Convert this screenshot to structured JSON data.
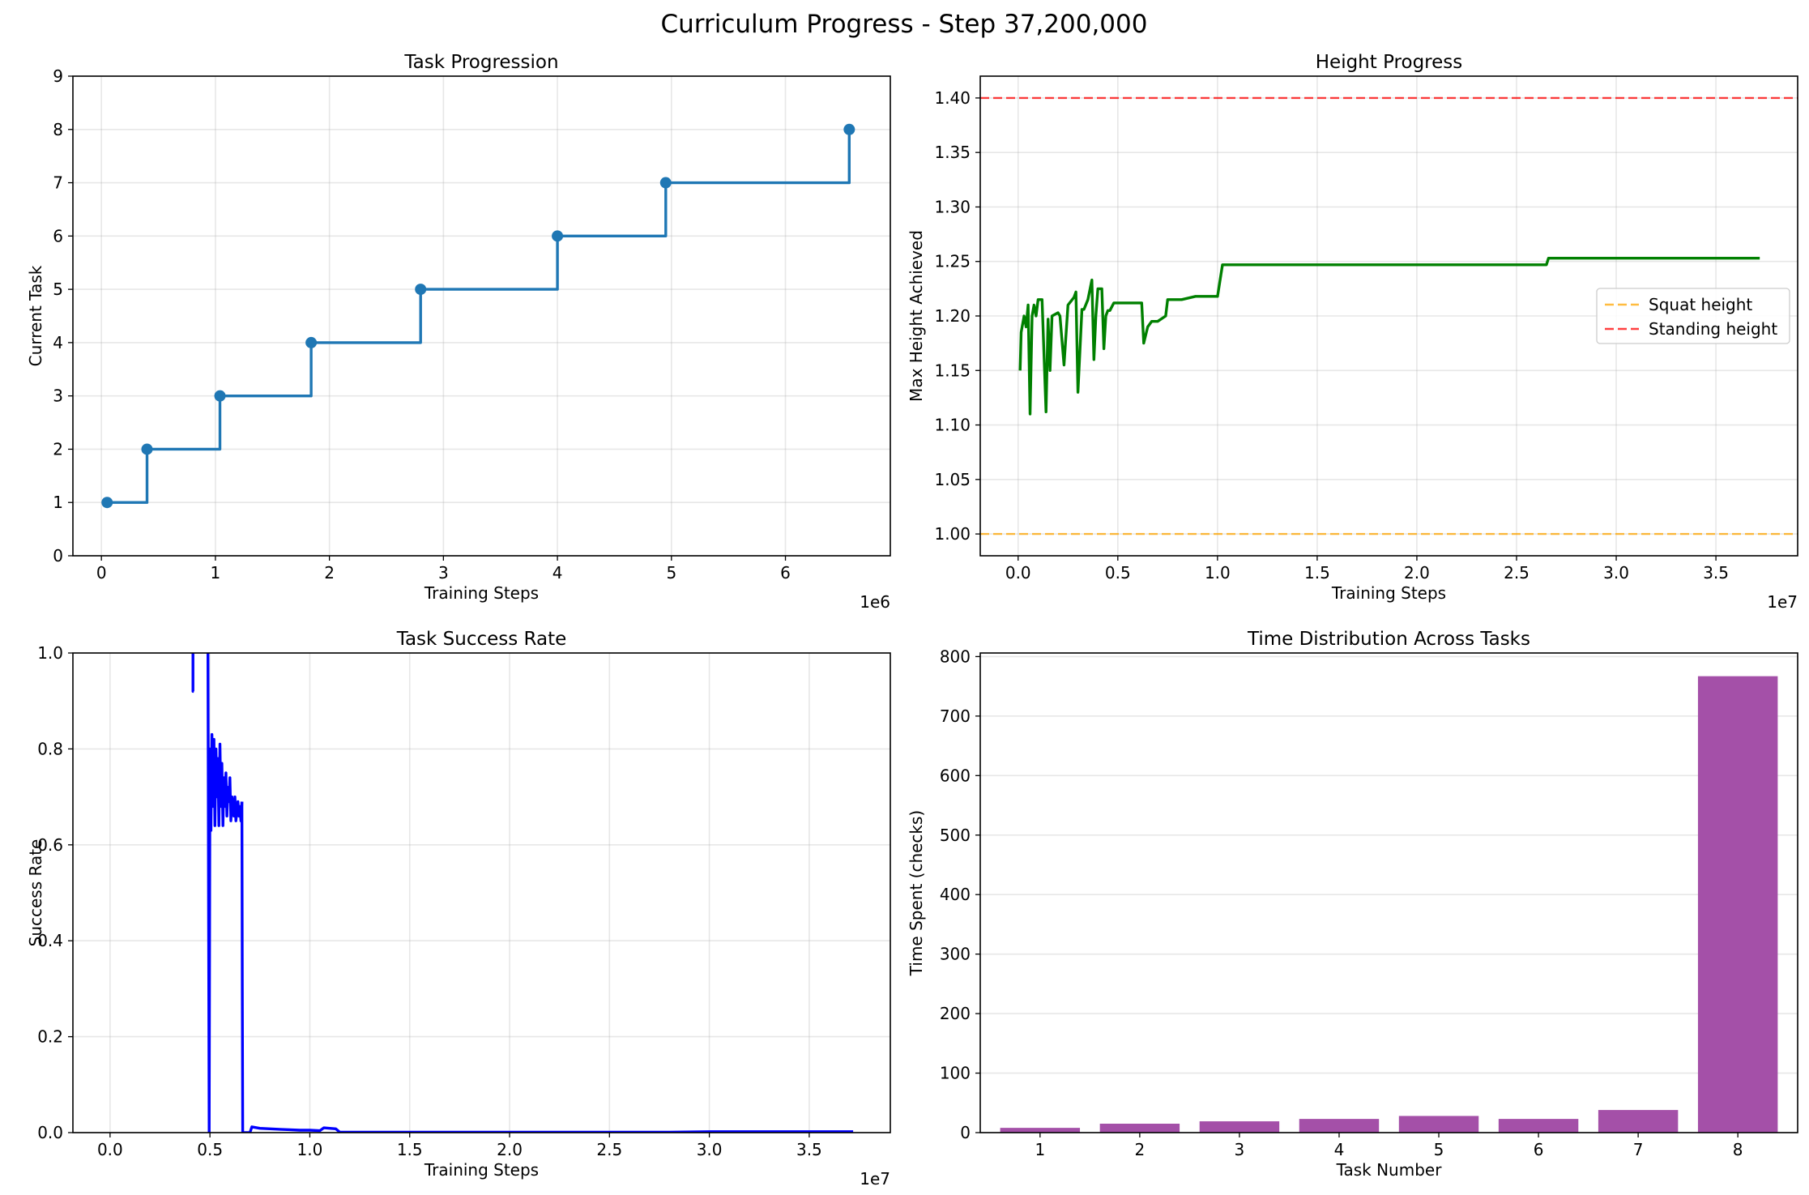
{
  "figure": {
    "suptitle": "Curriculum Progress - Step 37,200,000"
  },
  "chart_data": [
    {
      "type": "line",
      "title": "Task Progression",
      "xlabel": "Training Steps",
      "ylabel": "Current Task",
      "x_offset_label": "1e6",
      "xlim": [
        -250000,
        6920000
      ],
      "ylim": [
        0,
        9
      ],
      "x_ticks": [
        0,
        1000000,
        2000000,
        3000000,
        4000000,
        5000000,
        6000000
      ],
      "x_tick_labels": [
        "0",
        "1",
        "2",
        "3",
        "4",
        "5",
        "6"
      ],
      "y_ticks": [
        0,
        1,
        2,
        3,
        4,
        5,
        6,
        7,
        8,
        9
      ],
      "y_tick_labels": [
        "0",
        "1",
        "2",
        "3",
        "4",
        "5",
        "6",
        "7",
        "8",
        "9"
      ],
      "grid": true,
      "step": "post",
      "markers": true,
      "color": "#1f77b4",
      "series": [
        {
          "x": [
            50000,
            400000,
            1040000,
            1840000,
            2800000,
            4000000,
            4950000,
            6560000
          ],
          "y": [
            1,
            2,
            3,
            4,
            5,
            6,
            7,
            8
          ]
        }
      ]
    },
    {
      "type": "line",
      "title": "Height Progress",
      "xlabel": "Training Steps",
      "ylabel": "Max Height Achieved",
      "x_offset_label": "1e7",
      "xlim": [
        -1900000,
        39100000
      ],
      "ylim": [
        0.98,
        1.42
      ],
      "x_ticks": [
        0,
        5000000,
        10000000,
        15000000,
        20000000,
        25000000,
        30000000,
        35000000
      ],
      "x_tick_labels": [
        "0.0",
        "0.5",
        "1.0",
        "1.5",
        "2.0",
        "2.5",
        "3.0",
        "3.5"
      ],
      "y_ticks": [
        1.0,
        1.05,
        1.1,
        1.15,
        1.2,
        1.25,
        1.3,
        1.35,
        1.4
      ],
      "y_tick_labels": [
        "1.00",
        "1.05",
        "1.10",
        "1.15",
        "1.20",
        "1.25",
        "1.30",
        "1.35",
        "1.40"
      ],
      "grid": true,
      "legend_position": "center-right",
      "series": [
        {
          "color": "#008000",
          "x": [
            100000,
            150000,
            300000,
            400000,
            500000,
            600000,
            700000,
            800000,
            900000,
            1000000,
            1200000,
            1400000,
            1500000,
            1600000,
            1700000,
            2000000,
            2100000,
            2300000,
            2500000,
            2800000,
            2900000,
            3000000,
            3200000,
            3300000,
            3500000,
            3700000,
            3800000,
            3900000,
            4000000,
            4200000,
            4300000,
            4400000,
            4500000,
            4600000,
            4800000,
            5000000,
            5100000,
            5300000,
            5400000,
            5600000,
            5800000,
            6200000,
            6300000,
            6500000,
            6700000,
            6800000,
            7000000,
            7400000,
            7500000,
            7700000,
            8000000,
            8200000,
            8900000,
            9000000,
            10000000,
            10250000,
            14000000,
            20000000,
            26500000,
            26600000,
            30000000,
            37200000
          ],
          "y": [
            1.15,
            1.185,
            1.2,
            1.19,
            1.21,
            1.11,
            1.2,
            1.21,
            1.2,
            1.215,
            1.215,
            1.112,
            1.197,
            1.15,
            1.2,
            1.203,
            1.2,
            1.155,
            1.21,
            1.217,
            1.222,
            1.13,
            1.206,
            1.206,
            1.215,
            1.233,
            1.16,
            1.2,
            1.225,
            1.225,
            1.17,
            1.2,
            1.205,
            1.205,
            1.212,
            1.212,
            1.212,
            1.212,
            1.212,
            1.212,
            1.212,
            1.212,
            1.175,
            1.19,
            1.195,
            1.195,
            1.195,
            1.2,
            1.215,
            1.215,
            1.215,
            1.215,
            1.218,
            1.218,
            1.218,
            1.247,
            1.247,
            1.247,
            1.247,
            1.253,
            1.253,
            1.253
          ]
        },
        {
          "name": "Squat height",
          "color": "#ffa500",
          "dashed": true,
          "hline": 1.0
        },
        {
          "name": "Standing height",
          "color": "#ff0000",
          "dashed": true,
          "hline": 1.4
        }
      ]
    },
    {
      "type": "line",
      "title": "Task Success Rate",
      "xlabel": "Training Steps",
      "ylabel": "Success Rate",
      "x_offset_label": "1e7",
      "xlim": [
        -1860000,
        39060000
      ],
      "ylim": [
        0,
        1
      ],
      "x_ticks": [
        0,
        5000000,
        10000000,
        15000000,
        20000000,
        25000000,
        30000000,
        35000000
      ],
      "x_tick_labels": [
        "0.0",
        "0.5",
        "1.0",
        "1.5",
        "2.0",
        "2.5",
        "3.0",
        "3.5"
      ],
      "y_ticks": [
        0,
        0.2,
        0.4,
        0.6,
        0.8,
        1.0
      ],
      "y_tick_labels": [
        "0.0",
        "0.2",
        "0.4",
        "0.6",
        "0.8",
        "1.0"
      ],
      "grid": true,
      "color": "#0000ff",
      "series": [
        {
          "x": [
            4150000,
            4150000,
            4190000
          ],
          "y": [
            1.0,
            0.92,
            0.92
          ]
        },
        {
          "x": [
            4900000,
            4930000,
            4960000,
            5000000,
            5050000,
            5100000,
            5150000,
            5200000,
            5250000,
            5300000,
            5350000,
            5400000,
            5450000,
            5500000,
            5550000,
            5600000,
            5650000,
            5700000,
            5750000,
            5800000,
            5850000,
            5900000,
            5950000,
            6000000,
            6050000,
            6100000,
            6150000,
            6200000,
            6250000,
            6300000,
            6350000,
            6400000,
            6450000,
            6500000,
            6550000,
            6600000
          ],
          "y": [
            1.0,
            0.5,
            0.0,
            0.8,
            0.63,
            0.83,
            0.68,
            0.82,
            0.64,
            0.8,
            0.7,
            0.78,
            0.64,
            0.81,
            0.68,
            0.77,
            0.64,
            0.74,
            0.68,
            0.75,
            0.66,
            0.72,
            0.69,
            0.74,
            0.65,
            0.7,
            0.68,
            0.66,
            0.7,
            0.65,
            0.67,
            0.69,
            0.66,
            0.68,
            0.65,
            0.69
          ]
        },
        {
          "x": [
            6600000,
            6620000,
            6640000,
            7000000,
            7100000,
            7500000,
            8000000,
            8500000,
            9000000,
            9500000,
            10000000,
            10500000,
            10700000,
            11000000,
            11300000,
            11500000,
            12000000,
            20000000,
            28000000,
            30000000,
            37200000
          ],
          "y": [
            0.69,
            0.3,
            0.0,
            0.0,
            0.012,
            0.009,
            0.008,
            0.007,
            0.006,
            0.005,
            0.005,
            0.004,
            0.01,
            0.009,
            0.008,
            0.001,
            0.001,
            0.001,
            0.001,
            0.002,
            0.002
          ]
        }
      ]
    },
    {
      "type": "bar",
      "title": "Time Distribution Across Tasks",
      "xlabel": "Task Number",
      "ylabel": "Time Spent (checks)",
      "categories": [
        "1",
        "2",
        "3",
        "4",
        "5",
        "6",
        "7",
        "8"
      ],
      "values": [
        8,
        15,
        19,
        23,
        28,
        23,
        38,
        767
      ],
      "ylim": [
        0,
        806
      ],
      "y_ticks": [
        0,
        100,
        200,
        300,
        400,
        500,
        600,
        700,
        800
      ],
      "y_tick_labels": [
        "0",
        "100",
        "200",
        "300",
        "400",
        "500",
        "600",
        "700",
        "800"
      ],
      "grid": true,
      "color": "#a24ca6"
    }
  ]
}
